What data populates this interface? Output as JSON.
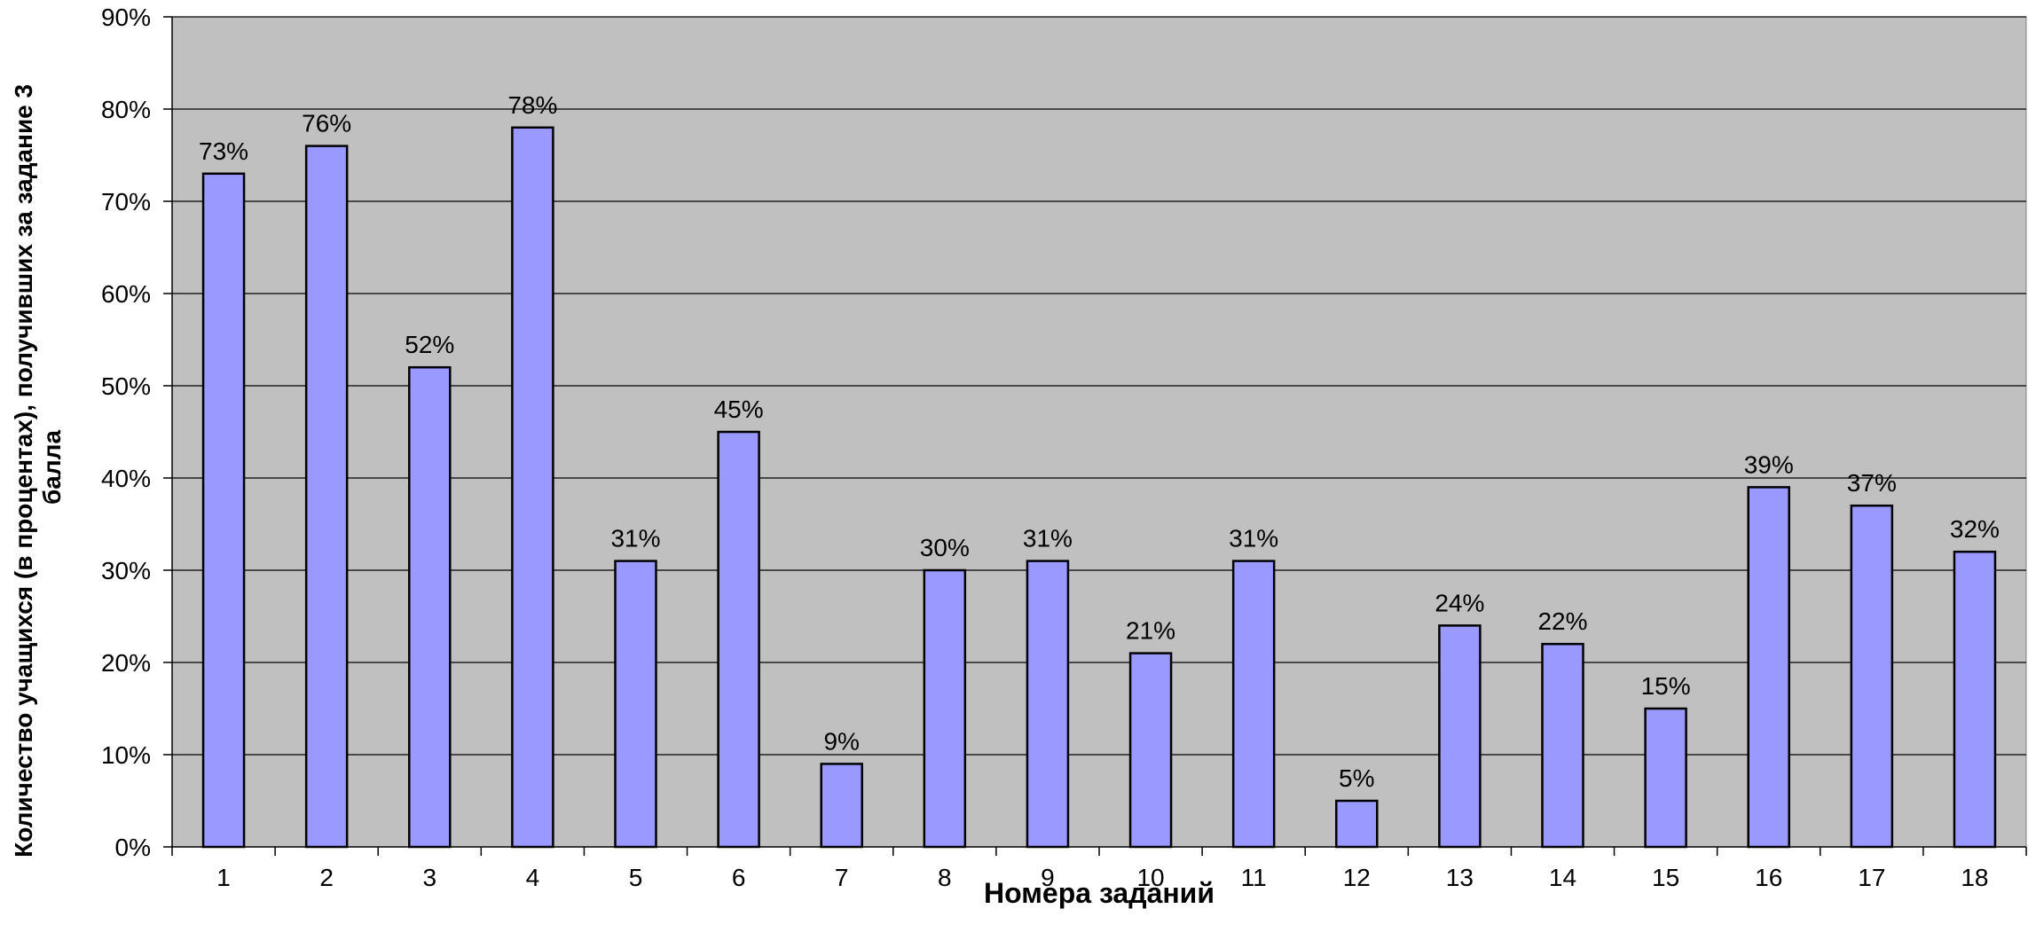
{
  "chart_data": {
    "type": "bar",
    "categories": [
      "1",
      "2",
      "3",
      "4",
      "5",
      "6",
      "7",
      "8",
      "9",
      "10",
      "11",
      "12",
      "13",
      "14",
      "15",
      "16",
      "17",
      "18"
    ],
    "values": [
      73,
      76,
      52,
      78,
      31,
      45,
      9,
      30,
      31,
      21,
      31,
      5,
      24,
      22,
      15,
      39,
      37,
      32
    ],
    "data_labels": [
      "73%",
      "76%",
      "52%",
      "78%",
      "31%",
      "45%",
      "9%",
      "30%",
      "31%",
      "21%",
      "31%",
      "5%",
      "24%",
      "22%",
      "15%",
      "39%",
      "37%",
      "32%"
    ],
    "title": "",
    "xlabel": "Номера заданий",
    "ylabel_line1": "Количество учащихся (в процентах), получивших за задание 3",
    "ylabel_line2": "балла",
    "ylim": [
      0,
      90
    ],
    "yticks": [
      0,
      10,
      20,
      30,
      40,
      50,
      60,
      70,
      80,
      90
    ],
    "ytick_labels": [
      "0%",
      "10%",
      "20%",
      "30%",
      "40%",
      "50%",
      "60%",
      "70%",
      "80%",
      "90%"
    ],
    "grid": true,
    "legend": "none",
    "colors": {
      "plot_background": "#C0C0C0",
      "bar_fill": "#9999FF",
      "bar_stroke": "#000000",
      "gridline": "#000000",
      "axis": "#000000"
    }
  }
}
